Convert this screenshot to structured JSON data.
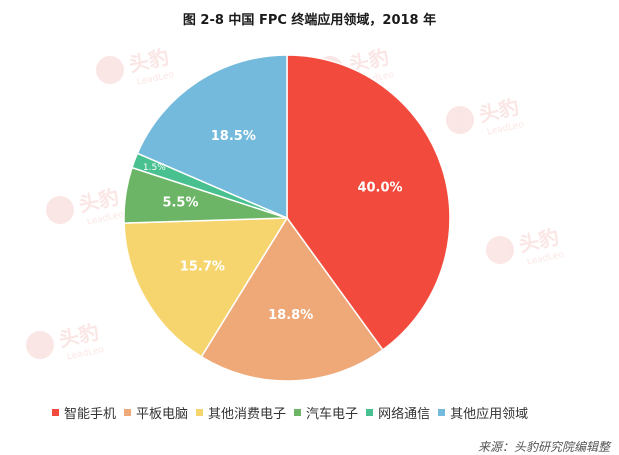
{
  "title": "图 2-8 中国 FPC 终端应用领域，2018 年",
  "watermark": {
    "text": "头豹",
    "sub": "LeadLeo"
  },
  "source": "来源：头豹研究院编辑整",
  "chart_data": {
    "type": "pie",
    "title": "图 2-8 中国 FPC 终端应用领域，2018 年",
    "legend_position": "bottom",
    "slices": [
      {
        "name": "智能手机",
        "value": 40.0,
        "label": "40.0%",
        "color": "#F24B3D"
      },
      {
        "name": "平板电脑",
        "value": 18.8,
        "label": "18.8%",
        "color": "#EFA877"
      },
      {
        "name": "其他消费电子",
        "value": 15.7,
        "label": "15.7%",
        "color": "#F7D56E"
      },
      {
        "name": "汽车电子",
        "value": 5.5,
        "label": "5.5%",
        "color": "#6DB566"
      },
      {
        "name": "网络通信",
        "value": 1.5,
        "label": "1.5%",
        "color": "#48C08F"
      },
      {
        "name": "其他应用领域",
        "value": 18.5,
        "label": "18.5%",
        "color": "#74BADC"
      }
    ]
  }
}
